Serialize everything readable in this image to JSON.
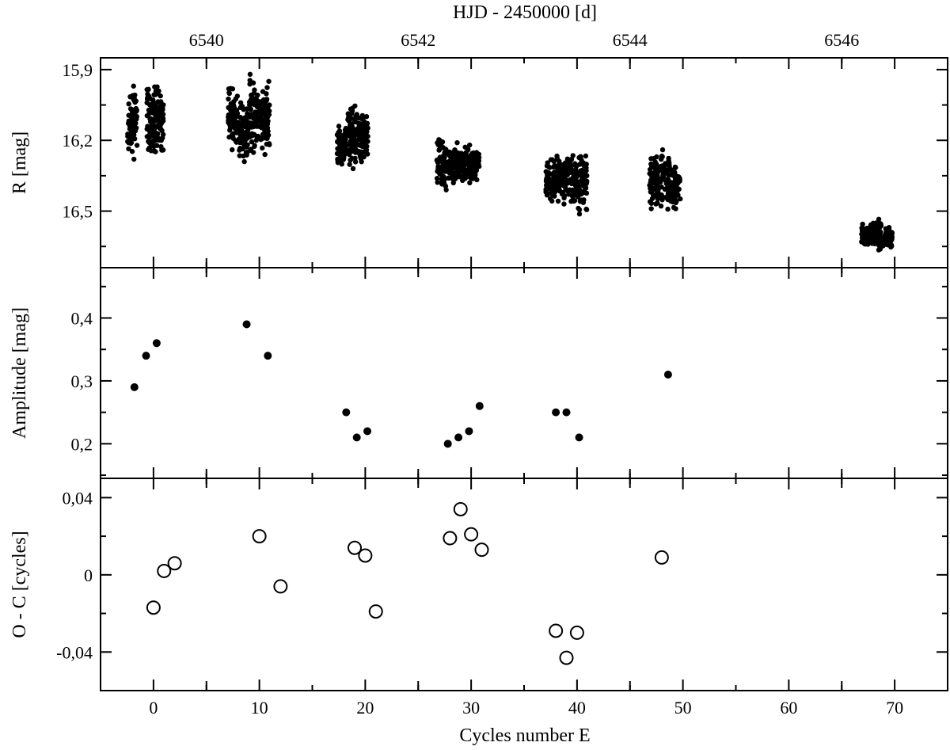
{
  "chart_data": {
    "type": "scatter",
    "top_axis": {
      "label": "HJD - 2450000 [d]",
      "ticks": [
        6540,
        6542,
        6544,
        6546
      ],
      "tick_labels": [
        "6540",
        "6542",
        "6544",
        "6546"
      ],
      "cycle_at_6540": 5,
      "cycles_per_day": 10
    },
    "bottom_axis": {
      "label": "Cycles number E",
      "range": [
        -5,
        75
      ],
      "ticks": [
        0,
        10,
        20,
        30,
        40,
        50,
        60,
        70
      ],
      "tick_labels": [
        "0",
        "10",
        "20",
        "30",
        "40",
        "50",
        "60",
        "70"
      ]
    },
    "panels": [
      {
        "name": "light-curve",
        "ylabel": "R [mag]",
        "ylim": [
          15.85,
          16.74
        ],
        "inverted": true,
        "y_ticks": [
          15.9,
          16.2,
          16.5
        ],
        "y_tick_labels": [
          "15,9",
          "16,2",
          "16,5"
        ],
        "marker": "filled-dot",
        "series": [
          {
            "values": [
              {
                "x": -2.0,
                "y_min": 15.97,
                "y_max": 16.28
              },
              {
                "x": -0.2,
                "y_min": 15.96,
                "y_max": 16.28
              },
              {
                "x": 0.5,
                "y_min": 15.94,
                "y_max": 16.26
              },
              {
                "x": 7.5,
                "y_min": 15.98,
                "y_max": 16.24
              },
              {
                "x": 8.5,
                "y_min": 16.02,
                "y_max": 16.3
              },
              {
                "x": 9.5,
                "y_min": 15.92,
                "y_max": 16.28
              },
              {
                "x": 10.5,
                "y_min": 15.95,
                "y_max": 16.26
              },
              {
                "x": 17.8,
                "y_min": 16.14,
                "y_max": 16.31
              },
              {
                "x": 18.8,
                "y_min": 16.03,
                "y_max": 16.32
              },
              {
                "x": 19.8,
                "y_min": 16.08,
                "y_max": 16.3
              },
              {
                "x": 27.2,
                "y_min": 16.19,
                "y_max": 16.41
              },
              {
                "x": 28.3,
                "y_min": 16.21,
                "y_max": 16.38
              },
              {
                "x": 29.3,
                "y_min": 16.21,
                "y_max": 16.37
              },
              {
                "x": 30.3,
                "y_min": 16.22,
                "y_max": 16.38
              },
              {
                "x": 37.5,
                "y_min": 16.26,
                "y_max": 16.48
              },
              {
                "x": 38.5,
                "y_min": 16.26,
                "y_max": 16.47
              },
              {
                "x": 39.5,
                "y_min": 16.25,
                "y_max": 16.48
              },
              {
                "x": 40.5,
                "y_min": 16.25,
                "y_max": 16.52
              },
              {
                "x": 47.3,
                "y_min": 16.27,
                "y_max": 16.49
              },
              {
                "x": 48.3,
                "y_min": 16.24,
                "y_max": 16.5
              },
              {
                "x": 49.3,
                "y_min": 16.31,
                "y_max": 16.49
              },
              {
                "x": 67.3,
                "y_min": 16.55,
                "y_max": 16.66
              },
              {
                "x": 68.3,
                "y_min": 16.53,
                "y_max": 16.67
              },
              {
                "x": 69.3,
                "y_min": 16.56,
                "y_max": 16.67
              }
            ]
          }
        ]
      },
      {
        "name": "amplitude",
        "ylabel": "Amplitude [mag]",
        "ylim": [
          0.145,
          0.48
        ],
        "y_ticks": [
          0.2,
          0.3,
          0.4
        ],
        "y_tick_labels": [
          "0,2",
          "0,3",
          "0,4"
        ],
        "marker": "filled-dot",
        "series": [
          {
            "x": [
              -1.8,
              -0.7,
              0.3,
              8.8,
              10.8,
              18.2,
              19.2,
              20.2,
              27.8,
              28.8,
              29.8,
              30.8,
              38.0,
              39.0,
              40.2,
              48.6
            ],
            "y": [
              0.29,
              0.34,
              0.36,
              0.39,
              0.34,
              0.25,
              0.21,
              0.22,
              0.2,
              0.21,
              0.22,
              0.26,
              0.25,
              0.25,
              0.21,
              0.31
            ]
          }
        ]
      },
      {
        "name": "o-c",
        "ylabel": "O - C [cycles]",
        "ylim": [
          -0.06,
          0.05
        ],
        "y_ticks": [
          -0.04,
          0,
          0.04
        ],
        "y_tick_labels": [
          "-0,04",
          "0",
          "0,04"
        ],
        "marker": "open-circle",
        "series": [
          {
            "x": [
              0,
              1,
              2,
              10,
              12,
              19,
              20,
              21,
              28,
              29,
              30,
              31,
              38,
              39,
              40,
              48
            ],
            "y": [
              -0.017,
              0.002,
              0.006,
              0.02,
              -0.006,
              0.014,
              0.01,
              -0.019,
              0.019,
              0.034,
              0.021,
              0.013,
              -0.029,
              -0.043,
              -0.03,
              0.009
            ]
          }
        ]
      }
    ]
  }
}
